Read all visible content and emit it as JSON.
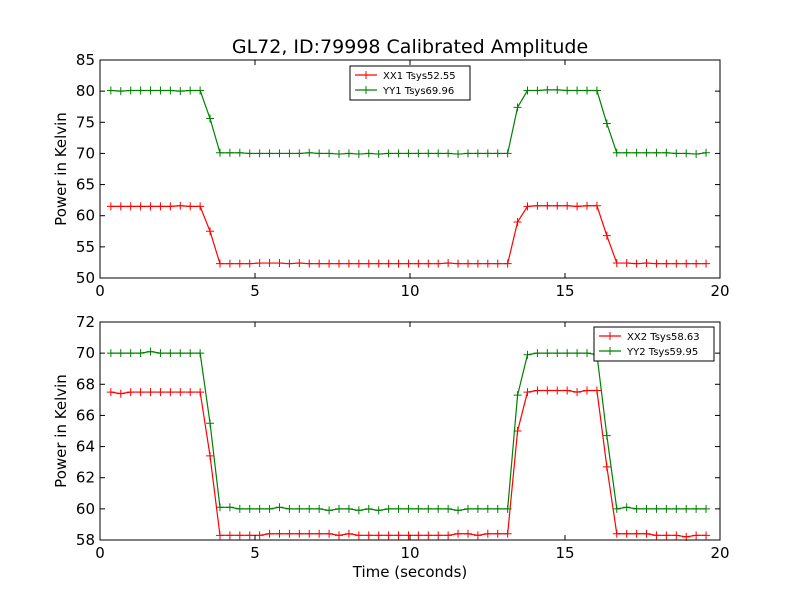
{
  "chart_data": [
    {
      "type": "line",
      "title": "GL72, ID:79998 Calibrated Amplitude",
      "xlabel": "",
      "ylabel": "Power in Kelvin",
      "xlim": [
        0,
        20
      ],
      "ylim": [
        50,
        85
      ],
      "xticks": [
        "0",
        "5",
        "10",
        "15",
        "20"
      ],
      "yticks": [
        "50",
        "55",
        "60",
        "65",
        "70",
        "75",
        "80",
        "85"
      ],
      "legend_position": "upper-center",
      "x": [
        0.35,
        0.67,
        0.99,
        1.31,
        1.63,
        1.95,
        2.27,
        2.59,
        2.91,
        3.23,
        3.55,
        3.87,
        4.19,
        4.51,
        4.83,
        5.15,
        5.47,
        5.79,
        6.11,
        6.43,
        6.75,
        7.07,
        7.39,
        7.71,
        8.03,
        8.35,
        8.67,
        8.99,
        9.31,
        9.63,
        9.95,
        10.27,
        10.59,
        10.91,
        11.23,
        11.55,
        11.87,
        12.19,
        12.51,
        12.83,
        13.15,
        13.47,
        13.79,
        14.11,
        14.43,
        14.75,
        15.07,
        15.39,
        15.71,
        16.03,
        16.35,
        16.67,
        16.99,
        17.31,
        17.63,
        17.95,
        18.27,
        18.59,
        18.91,
        19.23,
        19.55
      ],
      "series": [
        {
          "name": "XX1 Tsys52.55",
          "color": "#ff0000",
          "values": [
            61.5,
            61.5,
            61.5,
            61.5,
            61.5,
            61.5,
            61.5,
            61.6,
            61.5,
            61.5,
            57.5,
            52.3,
            52.3,
            52.3,
            52.3,
            52.4,
            52.4,
            52.4,
            52.3,
            52.4,
            52.3,
            52.3,
            52.3,
            52.3,
            52.3,
            52.3,
            52.3,
            52.3,
            52.3,
            52.3,
            52.3,
            52.3,
            52.3,
            52.3,
            52.4,
            52.3,
            52.3,
            52.3,
            52.3,
            52.3,
            52.3,
            59.0,
            61.5,
            61.6,
            61.6,
            61.6,
            61.6,
            61.5,
            61.6,
            61.6,
            56.8,
            52.4,
            52.4,
            52.3,
            52.4,
            52.3,
            52.3,
            52.3,
            52.3,
            52.3,
            52.3
          ]
        },
        {
          "name": "YY1 Tsys69.96",
          "color": "#008000",
          "values": [
            80.1,
            80.0,
            80.1,
            80.1,
            80.1,
            80.1,
            80.1,
            80.0,
            80.1,
            80.1,
            75.6,
            70.1,
            70.1,
            70.1,
            70.0,
            70.0,
            70.0,
            70.0,
            70.0,
            70.0,
            70.1,
            70.0,
            70.0,
            69.9,
            70.0,
            69.9,
            70.0,
            69.9,
            70.0,
            70.0,
            70.0,
            70.0,
            70.0,
            70.0,
            70.0,
            69.9,
            70.0,
            70.0,
            70.0,
            70.0,
            70.0,
            77.4,
            80.1,
            80.1,
            80.2,
            80.2,
            80.1,
            80.1,
            80.1,
            80.1,
            74.8,
            70.1,
            70.1,
            70.1,
            70.1,
            70.1,
            70.1,
            70.0,
            70.0,
            69.9,
            70.1
          ]
        }
      ]
    },
    {
      "type": "line",
      "title": "",
      "xlabel": "Time (seconds)",
      "ylabel": "Power in Kelvin",
      "xlim": [
        0,
        20
      ],
      "ylim": [
        58,
        72
      ],
      "xticks": [
        "0",
        "5",
        "10",
        "15",
        "20"
      ],
      "yticks": [
        "58",
        "60",
        "62",
        "64",
        "66",
        "68",
        "70",
        "72"
      ],
      "legend_position": "upper-right",
      "x": [
        0.35,
        0.67,
        0.99,
        1.31,
        1.63,
        1.95,
        2.27,
        2.59,
        2.91,
        3.23,
        3.55,
        3.87,
        4.19,
        4.51,
        4.83,
        5.15,
        5.47,
        5.79,
        6.11,
        6.43,
        6.75,
        7.07,
        7.39,
        7.71,
        8.03,
        8.35,
        8.67,
        8.99,
        9.31,
        9.63,
        9.95,
        10.27,
        10.59,
        10.91,
        11.23,
        11.55,
        11.87,
        12.19,
        12.51,
        12.83,
        13.15,
        13.47,
        13.79,
        14.11,
        14.43,
        14.75,
        15.07,
        15.39,
        15.71,
        16.03,
        16.35,
        16.67,
        16.99,
        17.31,
        17.63,
        17.95,
        18.27,
        18.59,
        18.91,
        19.23,
        19.55
      ],
      "series": [
        {
          "name": "XX2 Tsys58.63",
          "color": "#ff0000",
          "values": [
            67.5,
            67.4,
            67.5,
            67.5,
            67.5,
            67.5,
            67.5,
            67.5,
            67.5,
            67.5,
            63.4,
            58.3,
            58.3,
            58.3,
            58.3,
            58.3,
            58.4,
            58.4,
            58.4,
            58.4,
            58.4,
            58.4,
            58.4,
            58.3,
            58.4,
            58.3,
            58.3,
            58.3,
            58.3,
            58.3,
            58.3,
            58.3,
            58.3,
            58.3,
            58.3,
            58.4,
            58.4,
            58.3,
            58.4,
            58.4,
            58.4,
            65.0,
            67.5,
            67.6,
            67.6,
            67.6,
            67.6,
            67.5,
            67.6,
            67.6,
            62.7,
            58.4,
            58.4,
            58.4,
            58.4,
            58.3,
            58.3,
            58.3,
            58.2,
            58.3,
            58.3
          ]
        },
        {
          "name": "YY2 Tsys59.95",
          "color": "#008000",
          "values": [
            70.0,
            70.0,
            70.0,
            70.0,
            70.1,
            70.0,
            70.0,
            70.0,
            70.0,
            70.0,
            65.5,
            60.1,
            60.1,
            60.0,
            60.0,
            60.0,
            60.0,
            60.1,
            60.0,
            60.0,
            60.0,
            60.0,
            59.9,
            60.0,
            60.0,
            59.9,
            60.0,
            59.9,
            60.0,
            60.0,
            60.0,
            60.0,
            60.0,
            60.0,
            60.0,
            59.9,
            60.0,
            60.0,
            60.0,
            60.0,
            60.0,
            67.3,
            69.9,
            70.0,
            70.0,
            70.0,
            70.0,
            70.0,
            70.0,
            69.9,
            64.7,
            60.0,
            60.1,
            60.0,
            60.0,
            60.0,
            60.0,
            60.0,
            60.0,
            60.0,
            60.0
          ]
        }
      ]
    }
  ]
}
